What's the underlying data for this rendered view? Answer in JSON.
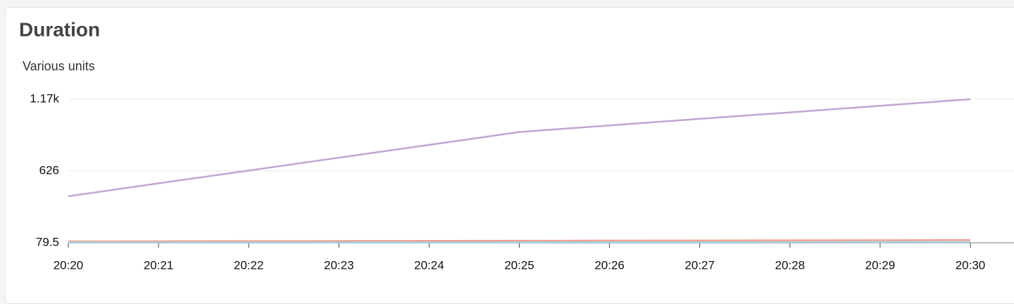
{
  "chart_data": {
    "type": "line",
    "title": "Duration",
    "ylabel": "Various units",
    "categories": [
      "20:20",
      "20:21",
      "20:22",
      "20:23",
      "20:24",
      "20:25",
      "20:26",
      "20:27",
      "20:28",
      "20:29",
      "20:30"
    ],
    "series": [
      {
        "color": "#c0a6d0",
        "values": [
          433,
          531,
          628,
          726,
          823,
          921,
          971,
          1021,
          1070,
          1120,
          1170
        ]
      },
      {
        "color": "#f2a08c",
        "values": [
          90,
          91,
          92,
          93,
          94,
          95,
          96,
          97,
          98,
          99,
          100
        ]
      },
      {
        "color": "#a9cfe3",
        "values": [
          82,
          82,
          82,
          83,
          83,
          83,
          84,
          84,
          84,
          85,
          85
        ]
      }
    ],
    "ylim": [
      79.5,
      1170
    ],
    "yticks": [
      79.5,
      626,
      {
        "value": 1170,
        "label": "1.17k"
      }
    ],
    "grid": true
  }
}
